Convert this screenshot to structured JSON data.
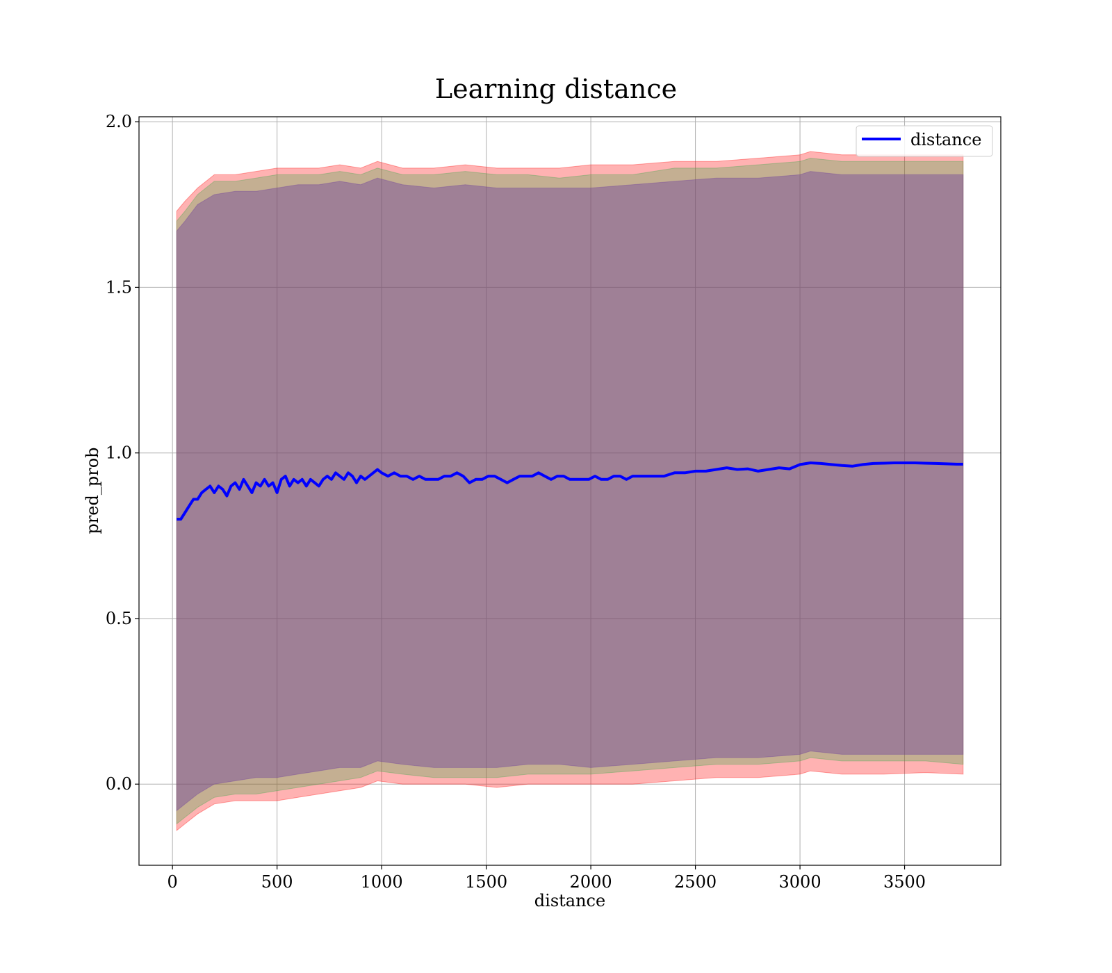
{
  "chart_data": {
    "type": "line",
    "title": "Learning distance",
    "xlabel": "distance",
    "ylabel": "pred_prob",
    "xlim": [
      -160,
      3960
    ],
    "ylim": [
      -0.245,
      2.015
    ],
    "xticks": [
      0,
      500,
      1000,
      1500,
      2000,
      2500,
      3000,
      3500
    ],
    "xtick_labels": [
      "0",
      "500",
      "1000",
      "1500",
      "2000",
      "2500",
      "3000",
      "3500"
    ],
    "yticks": [
      0.0,
      0.5,
      1.0,
      1.5,
      2.0
    ],
    "ytick_labels": [
      "0.0",
      "0.5",
      "1.0",
      "1.5",
      "2.0"
    ],
    "grid": true,
    "legend": {
      "position": "top-right",
      "entries": [
        "distance"
      ]
    },
    "colors": {
      "line": "#0000ff",
      "outer_band": "#ff0000",
      "middle_band": "#3aa84a",
      "inner_band": "#6a3a9e",
      "grid": "#b0b0b0"
    },
    "series": [
      {
        "name": "distance",
        "x": [
          20,
          40,
          60,
          80,
          100,
          120,
          140,
          160,
          180,
          200,
          220,
          240,
          260,
          280,
          300,
          320,
          340,
          360,
          380,
          400,
          420,
          440,
          460,
          480,
          500,
          520,
          540,
          560,
          580,
          600,
          620,
          640,
          660,
          680,
          700,
          720,
          740,
          760,
          780,
          800,
          820,
          840,
          860,
          880,
          900,
          920,
          940,
          960,
          980,
          1000,
          1030,
          1060,
          1090,
          1120,
          1150,
          1180,
          1210,
          1240,
          1270,
          1300,
          1330,
          1360,
          1390,
          1420,
          1450,
          1480,
          1510,
          1540,
          1570,
          1600,
          1630,
          1660,
          1690,
          1720,
          1750,
          1780,
          1810,
          1840,
          1870,
          1900,
          1930,
          1960,
          1990,
          2020,
          2050,
          2080,
          2110,
          2140,
          2170,
          2200,
          2250,
          2300,
          2350,
          2400,
          2450,
          2500,
          2550,
          2600,
          2650,
          2700,
          2750,
          2800,
          2850,
          2900,
          2950,
          3000,
          3050,
          3100,
          3150,
          3200,
          3250,
          3300,
          3350,
          3400,
          3450,
          3500,
          3550,
          3600,
          3650,
          3700,
          3750,
          3780
        ],
        "y": [
          0.8,
          0.8,
          0.82,
          0.84,
          0.86,
          0.86,
          0.88,
          0.89,
          0.9,
          0.88,
          0.9,
          0.89,
          0.87,
          0.9,
          0.91,
          0.89,
          0.92,
          0.9,
          0.88,
          0.91,
          0.9,
          0.92,
          0.9,
          0.91,
          0.88,
          0.92,
          0.93,
          0.9,
          0.92,
          0.91,
          0.92,
          0.9,
          0.92,
          0.91,
          0.9,
          0.92,
          0.93,
          0.92,
          0.94,
          0.93,
          0.92,
          0.94,
          0.93,
          0.91,
          0.93,
          0.92,
          0.93,
          0.94,
          0.95,
          0.94,
          0.93,
          0.94,
          0.93,
          0.93,
          0.92,
          0.93,
          0.92,
          0.92,
          0.92,
          0.93,
          0.93,
          0.94,
          0.93,
          0.91,
          0.92,
          0.92,
          0.93,
          0.93,
          0.92,
          0.91,
          0.92,
          0.93,
          0.93,
          0.93,
          0.94,
          0.93,
          0.92,
          0.93,
          0.93,
          0.92,
          0.92,
          0.92,
          0.92,
          0.93,
          0.92,
          0.92,
          0.93,
          0.93,
          0.92,
          0.93,
          0.93,
          0.93,
          0.93,
          0.94,
          0.94,
          0.945,
          0.945,
          0.95,
          0.955,
          0.95,
          0.952,
          0.945,
          0.95,
          0.955,
          0.952,
          0.965,
          0.97,
          0.968,
          0.965,
          0.962,
          0.96,
          0.965,
          0.968,
          0.969,
          0.97,
          0.97,
          0.97,
          0.969,
          0.968,
          0.967,
          0.966,
          0.966
        ]
      }
    ],
    "bands": [
      {
        "layer": "outer",
        "x": [
          20,
          60,
          120,
          200,
          300,
          400,
          500,
          600,
          700,
          800,
          900,
          980,
          1100,
          1250,
          1400,
          1550,
          1700,
          1850,
          2000,
          2200,
          2400,
          2600,
          2800,
          3000,
          3050,
          3200,
          3400,
          3600,
          3780
        ],
        "upper": [
          1.73,
          1.76,
          1.8,
          1.84,
          1.84,
          1.85,
          1.86,
          1.86,
          1.86,
          1.87,
          1.86,
          1.88,
          1.86,
          1.86,
          1.87,
          1.86,
          1.86,
          1.86,
          1.87,
          1.87,
          1.88,
          1.88,
          1.89,
          1.9,
          1.91,
          1.9,
          1.9,
          1.9,
          1.9
        ],
        "lower": [
          -0.14,
          -0.12,
          -0.09,
          -0.06,
          -0.05,
          -0.05,
          -0.05,
          -0.04,
          -0.03,
          -0.02,
          -0.01,
          0.01,
          0.0,
          0.0,
          0.0,
          -0.01,
          0.0,
          0.0,
          0.0,
          0.0,
          0.01,
          0.02,
          0.02,
          0.03,
          0.04,
          0.03,
          0.03,
          0.035,
          0.03
        ]
      },
      {
        "layer": "middle",
        "x": [
          20,
          60,
          120,
          200,
          300,
          400,
          500,
          600,
          700,
          800,
          900,
          980,
          1100,
          1250,
          1400,
          1550,
          1700,
          1850,
          2000,
          2200,
          2400,
          2600,
          2800,
          3000,
          3050,
          3200,
          3400,
          3600,
          3780
        ],
        "upper": [
          1.7,
          1.73,
          1.78,
          1.82,
          1.82,
          1.83,
          1.84,
          1.84,
          1.84,
          1.85,
          1.84,
          1.86,
          1.84,
          1.84,
          1.85,
          1.84,
          1.84,
          1.83,
          1.84,
          1.84,
          1.86,
          1.86,
          1.87,
          1.88,
          1.89,
          1.88,
          1.88,
          1.88,
          1.88
        ],
        "lower": [
          -0.12,
          -0.1,
          -0.07,
          -0.04,
          -0.03,
          -0.03,
          -0.02,
          -0.01,
          0.0,
          0.01,
          0.02,
          0.04,
          0.03,
          0.02,
          0.02,
          0.02,
          0.03,
          0.03,
          0.03,
          0.04,
          0.05,
          0.06,
          0.06,
          0.07,
          0.08,
          0.07,
          0.07,
          0.07,
          0.06
        ]
      },
      {
        "layer": "inner",
        "x": [
          20,
          60,
          120,
          200,
          300,
          400,
          500,
          600,
          700,
          800,
          900,
          980,
          1100,
          1250,
          1400,
          1550,
          1700,
          1850,
          2000,
          2200,
          2400,
          2600,
          2800,
          3000,
          3050,
          3200,
          3400,
          3600,
          3780
        ],
        "upper": [
          1.67,
          1.7,
          1.75,
          1.78,
          1.79,
          1.79,
          1.8,
          1.81,
          1.81,
          1.82,
          1.81,
          1.83,
          1.81,
          1.8,
          1.81,
          1.8,
          1.8,
          1.8,
          1.8,
          1.81,
          1.82,
          1.83,
          1.83,
          1.84,
          1.85,
          1.84,
          1.84,
          1.84,
          1.84
        ],
        "lower": [
          -0.08,
          -0.06,
          -0.03,
          0.0,
          0.01,
          0.02,
          0.02,
          0.03,
          0.04,
          0.05,
          0.05,
          0.07,
          0.06,
          0.05,
          0.05,
          0.05,
          0.06,
          0.06,
          0.05,
          0.06,
          0.07,
          0.08,
          0.08,
          0.09,
          0.1,
          0.09,
          0.09,
          0.09,
          0.09
        ]
      }
    ]
  }
}
